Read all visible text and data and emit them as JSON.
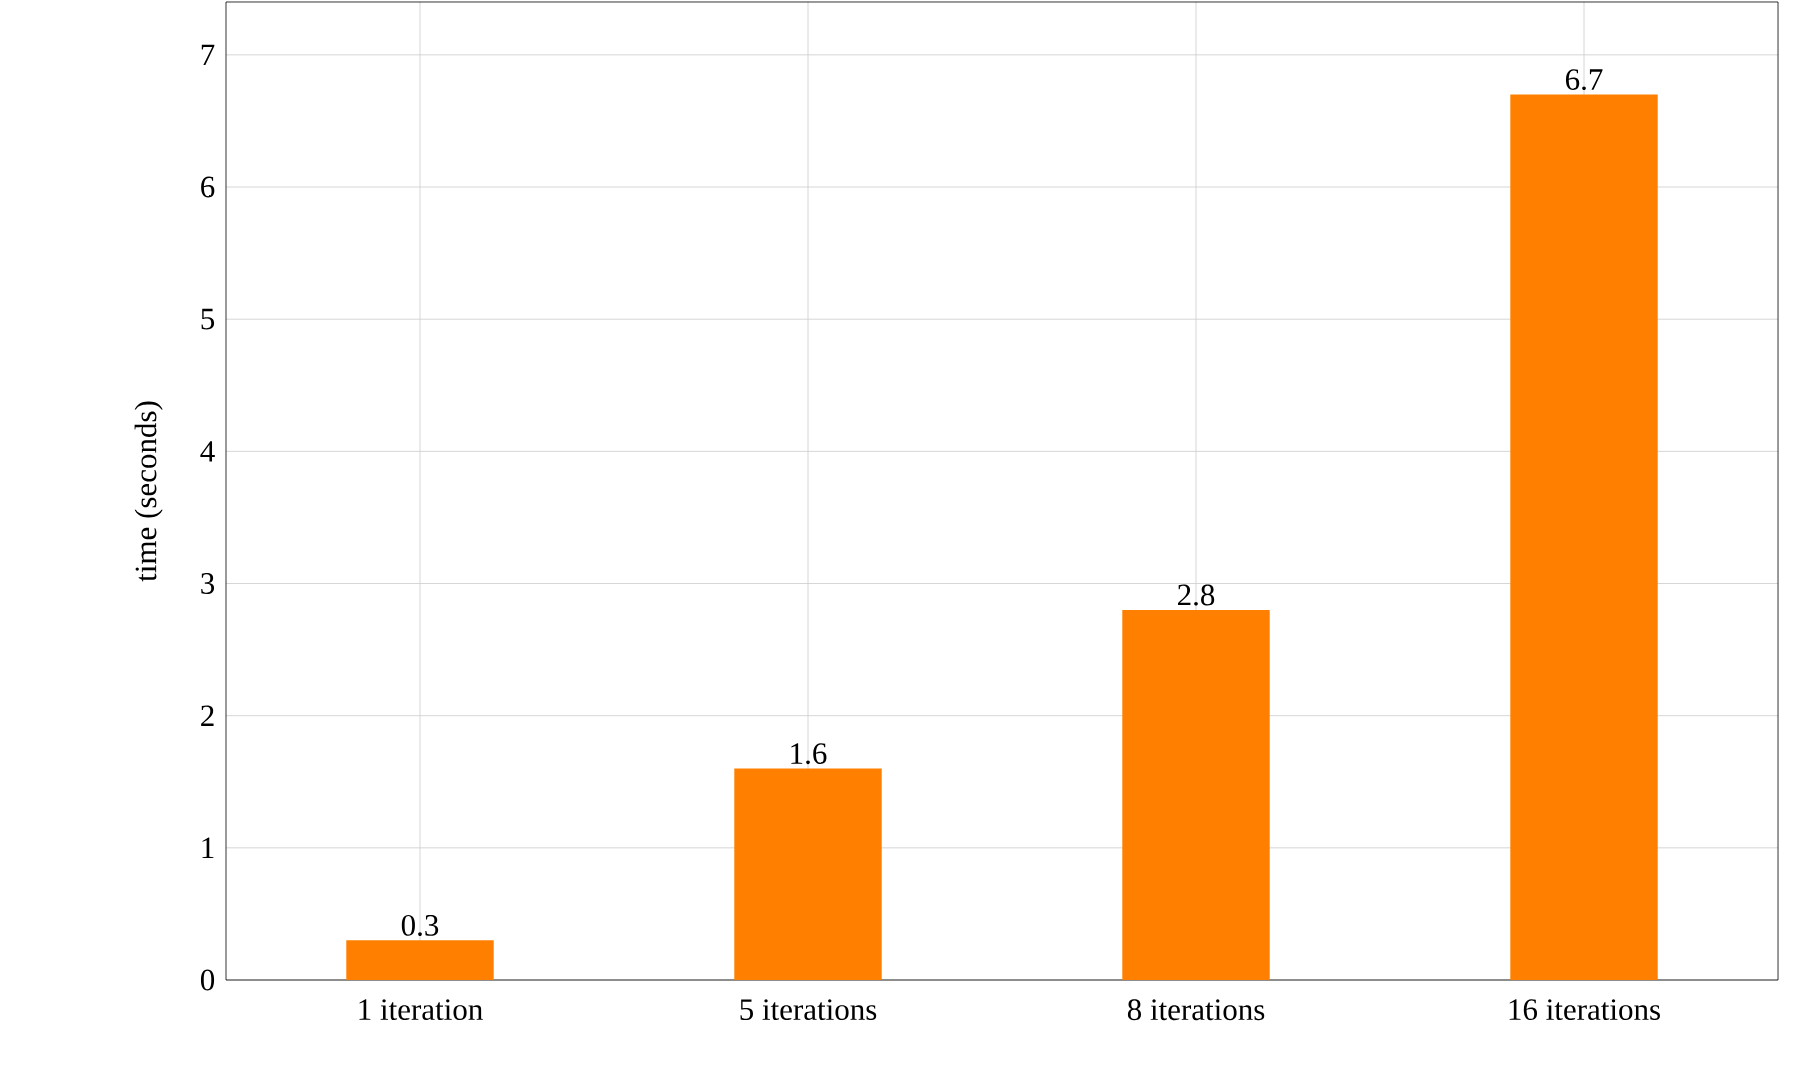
{
  "chart_data": {
    "type": "bar",
    "ylabel": "time (seconds)",
    "categories": [
      "1 iteration",
      "5 iterations",
      "8 iterations",
      "16 iterations"
    ],
    "values": [
      0.3,
      1.6,
      2.8,
      6.7
    ],
    "color": "#ff8000",
    "ylim": [
      0,
      7.4
    ],
    "yticks": [
      0,
      1,
      2,
      3,
      4,
      5,
      6,
      7
    ],
    "grid": true,
    "data_labels": true
  }
}
